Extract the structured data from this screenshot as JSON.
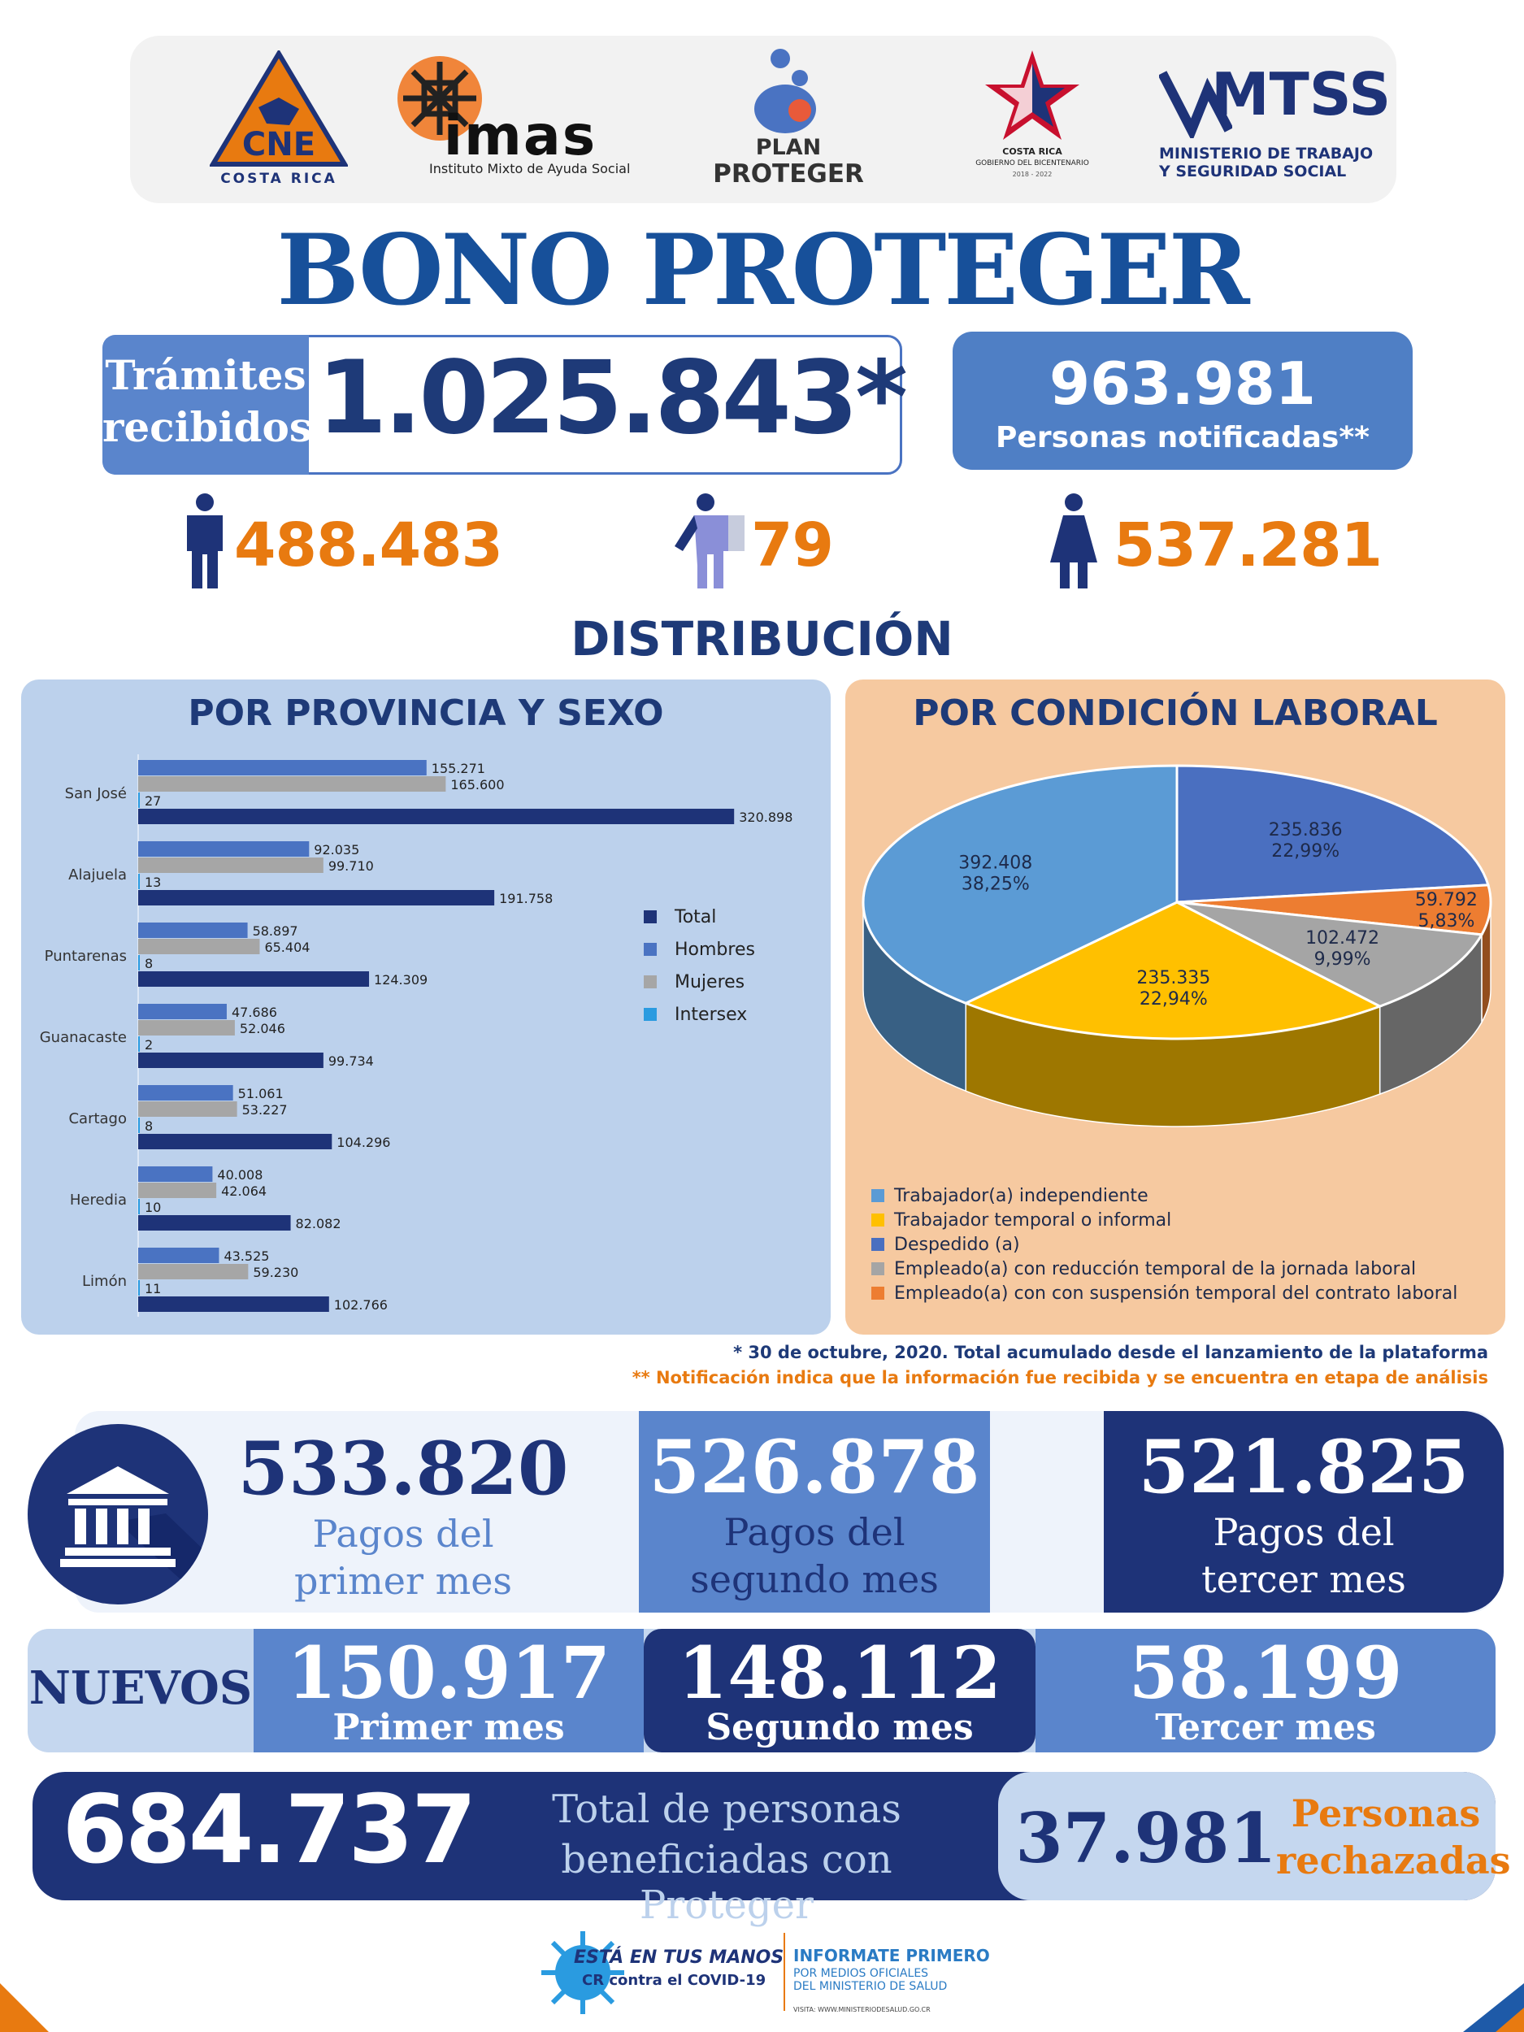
{
  "logos": {
    "cne": {
      "name": "CNE",
      "sub": "COSTA RICA"
    },
    "imas": {
      "name": "imas",
      "sub": "Instituto Mixto de Ayuda Social"
    },
    "plan": {
      "line1": "PLAN",
      "line2": "PROTEGER"
    },
    "gobierno": {
      "line1": "COSTA RICA",
      "line2": "GOBIERNO DEL BICENTENARIO",
      "line3": "2018 - 2022"
    },
    "mtss": {
      "name": "MTSS",
      "line1": "MINISTERIO DE TRABAJO",
      "line2": "Y SEGURIDAD SOCIAL"
    }
  },
  "title": "BONO PROTEGER",
  "tramites": {
    "label_line1": "Trámites",
    "label_line2": "recibidos",
    "value": "1.025.843*"
  },
  "notificadas": {
    "value": "963.981",
    "label": "Personas notificadas**"
  },
  "gender": {
    "men": "488.483",
    "intersex": "79",
    "women": "537.281"
  },
  "distribution_title": "DISTRIBUCIÓN",
  "colors": {
    "total": "#1e3378",
    "hombres": "#4a73c2",
    "mujeres": "#a6a6a6",
    "intersex": "#2a9be0",
    "orange": "#e87a10"
  },
  "chart_data": [
    {
      "type": "bar",
      "title": "POR PROVINCIA Y SEXO",
      "categories": [
        "San José",
        "Alajuela",
        "Puntarenas",
        "Guanacaste",
        "Cartago",
        "Heredia",
        "Limón"
      ],
      "series": [
        {
          "name": "Hombres",
          "values": [
            155271,
            92035,
            58897,
            47686,
            51061,
            40008,
            43525
          ],
          "labels": [
            "155.271",
            "92.035",
            "58.897",
            "47.686",
            "51.061",
            "40.008",
            "43.525"
          ]
        },
        {
          "name": "Mujeres",
          "values": [
            165600,
            99710,
            65404,
            52046,
            53227,
            42064,
            59230
          ],
          "labels": [
            "165.600",
            "99.710",
            "65.404",
            "52.046",
            "53.227",
            "42.064",
            "59.230"
          ]
        },
        {
          "name": "Intersex",
          "values": [
            27,
            13,
            8,
            2,
            8,
            10,
            11
          ],
          "labels": [
            "27",
            "13",
            "8",
            "2",
            "8",
            "10",
            "11"
          ]
        },
        {
          "name": "Total",
          "values": [
            320898,
            191758,
            124309,
            99734,
            104296,
            82082,
            102766
          ],
          "labels": [
            "320.898",
            "191.758",
            "124.309",
            "99.734",
            "104.296",
            "82.082",
            "102.766"
          ]
        }
      ],
      "legend": [
        "Total",
        "Hombres",
        "Mujeres",
        "Intersex"
      ],
      "xlim": [
        0,
        330000
      ]
    },
    {
      "type": "pie",
      "title": "POR CONDICIÓN LABORAL",
      "slices": [
        {
          "name": "Despedido (a)",
          "value": 235836,
          "label": "235.836",
          "pct": "22,99%",
          "color": "#4a6fc0"
        },
        {
          "name": "Empleado(a) con con suspensión temporal del contrato laboral",
          "value": 59792,
          "label": "59.792",
          "pct": "5,83%",
          "color": "#ed7d31"
        },
        {
          "name": "Empleado(a) con reducción temporal de la jornada laboral",
          "value": 102472,
          "label": "102.472",
          "pct": "9,99%",
          "color": "#a5a5a5"
        },
        {
          "name": "Trabajador temporal o informal",
          "value": 235335,
          "label": "235.335",
          "pct": "22,94%",
          "color": "#ffc000"
        },
        {
          "name": "Trabajador(a) independiente",
          "value": 392408,
          "label": "392.408",
          "pct": "38,25%",
          "color": "#5b9bd5"
        }
      ],
      "legend": [
        {
          "name": "Trabajador(a) independiente",
          "color": "#5b9bd5"
        },
        {
          "name": "Trabajador temporal o informal",
          "color": "#ffc000"
        },
        {
          "name": "Despedido (a)",
          "color": "#4a6fc0"
        },
        {
          "name": "Empleado(a) con reducción temporal de la jornada laboral",
          "color": "#a5a5a5"
        },
        {
          "name": "Empleado(a) con con suspensión temporal del contrato laboral",
          "color": "#ed7d31"
        }
      ]
    }
  ],
  "notes": {
    "n1": "* 30 de octubre, 2020. Total acumulado desde el lanzamiento de la plataforma",
    "n2": "** Notificación indica que la información fue recibida y se encuentra en etapa de análisis"
  },
  "payments": {
    "p1": {
      "value": "533.820",
      "line1": "Pagos del",
      "line2": "primer mes"
    },
    "p2": {
      "value": "526.878",
      "line1": "Pagos del",
      "line2": "segundo mes"
    },
    "p3": {
      "value": "521.825",
      "line1": "Pagos del",
      "line2": "tercer mes"
    }
  },
  "nuevos": {
    "label": "NUEVOS",
    "n1": {
      "value": "150.917",
      "label": "Primer mes"
    },
    "n2": {
      "value": "148.112",
      "label": "Segundo mes"
    },
    "n3": {
      "value": "58.199",
      "label": "Tercer mes"
    }
  },
  "total": {
    "value": "684.737",
    "line1": "Total de personas",
    "line2": "beneficiadas con Proteger"
  },
  "rechazadas": {
    "value": "37.981",
    "line1": "Personas",
    "line2": "rechazadas"
  },
  "footer": {
    "campaign1": "ESTÁ EN TUS MANOS",
    "campaign2": "CR contra el COVID-19",
    "info1": "INFORMATE PRIMERO",
    "info2": "POR MEDIOS OFICIALES",
    "info3": "DEL MINISTERIO DE SALUD",
    "visit": "VISITA: WWW.MINISTERIODESALUD.GO.CR"
  }
}
